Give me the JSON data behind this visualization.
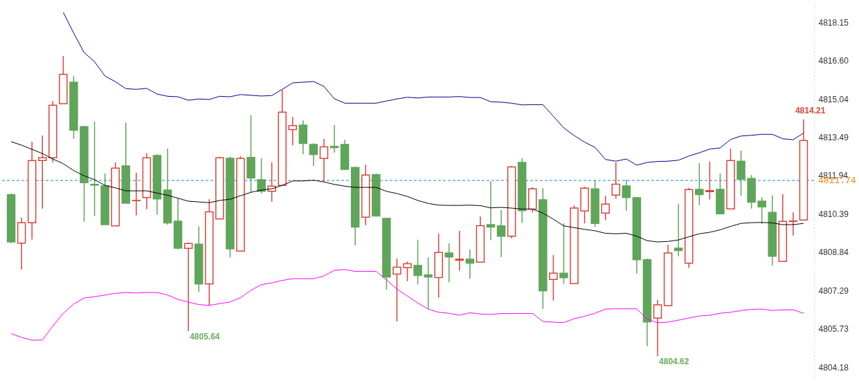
{
  "chart_data": {
    "type": "candlestick",
    "categories": [
      null,
      null,
      null,
      null,
      null,
      null,
      null,
      null,
      null,
      null,
      null,
      null,
      null,
      null,
      null,
      null,
      null,
      null,
      null,
      null,
      null,
      null,
      null,
      null,
      null,
      null,
      null,
      null,
      null,
      null,
      null,
      null,
      null,
      null,
      null,
      null,
      null,
      null,
      null,
      null,
      null,
      null,
      null,
      null,
      null,
      null,
      null,
      null,
      null,
      null,
      null,
      null,
      null,
      null,
      null,
      null,
      null,
      null,
      null,
      null,
      null,
      null,
      null,
      null,
      null,
      null,
      null,
      null,
      null,
      null,
      null,
      null,
      null,
      null,
      null,
      null,
      null
    ],
    "ohlc": [
      [
        4811.16,
        4811.21,
        4809.2,
        4809.25
      ],
      [
        4809.2,
        4810.23,
        4808.13,
        4810.03
      ],
      [
        4810.03,
        4813.31,
        4809.35,
        4812.55
      ],
      [
        4812.55,
        4813.56,
        4810.6,
        4812.66
      ],
      [
        4812.66,
        4814.96,
        4812.47,
        4814.79
      ],
      [
        4814.85,
        4816.78,
        4814.85,
        4816.04
      ],
      [
        4815.72,
        4815.97,
        4813.43,
        4813.78
      ],
      [
        4813.92,
        4813.96,
        4810.07,
        4811.65
      ],
      [
        4811.58,
        4814.12,
        4810.3,
        4811.55
      ],
      [
        4811.52,
        4812.02,
        4809.95,
        4809.95
      ],
      [
        4809.9,
        4812.47,
        4809.9,
        4812.24
      ],
      [
        4812.33,
        4814.08,
        4810.82,
        4810.82
      ],
      [
        4810.92,
        4812.05,
        4810.33,
        4810.93
      ],
      [
        4811.05,
        4812.84,
        4810.58,
        4812.66
      ],
      [
        4812.75,
        4812.8,
        4810.35,
        4810.99
      ],
      [
        4811.35,
        4813.03,
        4809.95,
        4810.02
      ],
      [
        4810.09,
        4811.02,
        4808.95,
        4809.0
      ],
      [
        4808.99,
        4809.22,
        4805.64,
        4809.19
      ],
      [
        4809.16,
        4809.88,
        4807.22,
        4807.55
      ],
      [
        4807.55,
        4810.98,
        4806.67,
        4810.47
      ],
      [
        4810.18,
        4812.7,
        4810.18,
        4812.66
      ],
      [
        4812.64,
        4812.7,
        4808.62,
        4808.97
      ],
      [
        4808.88,
        4812.72,
        4808.88,
        4812.63
      ],
      [
        4812.67,
        4814.38,
        4811.26,
        4811.84
      ],
      [
        4811.77,
        4812.64,
        4811.21,
        4811.3
      ],
      [
        4811.3,
        4812.47,
        4810.88,
        4811.51
      ],
      [
        4811.54,
        4815.41,
        4811.54,
        4814.51
      ],
      [
        4813.8,
        4814.32,
        4813.17,
        4813.96
      ],
      [
        4813.98,
        4814.17,
        4812.8,
        4813.24
      ],
      [
        4813.2,
        4813.24,
        4812.33,
        4812.79
      ],
      [
        4812.63,
        4813.42,
        4811.7,
        4813.1
      ],
      [
        4813.12,
        4813.98,
        4812.87,
        4813.07
      ],
      [
        4813.2,
        4813.39,
        4812.17,
        4812.19
      ],
      [
        4812.27,
        4812.3,
        4809.11,
        4809.85
      ],
      [
        4810.25,
        4812.38,
        4809.93,
        4811.96
      ],
      [
        4811.97,
        4812.02,
        4810.3,
        4810.3
      ],
      [
        4810.2,
        4810.23,
        4807.31,
        4807.83
      ],
      [
        4807.95,
        4808.58,
        4806.03,
        4808.23
      ],
      [
        4808.21,
        4808.46,
        4807.66,
        4808.37
      ],
      [
        4808.3,
        4809.34,
        4807.53,
        4807.89
      ],
      [
        4807.91,
        4808.63,
        4806.54,
        4807.83
      ],
      [
        4807.81,
        4809.59,
        4806.99,
        4808.82
      ],
      [
        4808.8,
        4809.19,
        4807.61,
        4808.64
      ],
      [
        4808.51,
        4809.7,
        4808.08,
        4808.55
      ],
      [
        4808.55,
        4808.94,
        4807.76,
        4808.39
      ],
      [
        4808.43,
        4810.28,
        4808.43,
        4809.91
      ],
      [
        4809.95,
        4811.7,
        4809.32,
        4809.85
      ],
      [
        4809.9,
        4810.54,
        4808.64,
        4809.48
      ],
      [
        4809.48,
        4812.33,
        4809.39,
        4812.29
      ],
      [
        4812.47,
        4812.64,
        4810.02,
        4810.52
      ],
      [
        4810.58,
        4811.47,
        4810.44,
        4811.4
      ],
      [
        4810.96,
        4811.43,
        4806.54,
        4807.27
      ],
      [
        4807.73,
        4808.72,
        4806.88,
        4807.98
      ],
      [
        4807.98,
        4810.0,
        4807.55,
        4807.8
      ],
      [
        4807.56,
        4810.73,
        4807.56,
        4810.62
      ],
      [
        4810.5,
        4811.49,
        4810.0,
        4811.43
      ],
      [
        4811.4,
        4811.77,
        4809.86,
        4810.0
      ],
      [
        4810.42,
        4811.12,
        4810.14,
        4810.78
      ],
      [
        4811.15,
        4812.47,
        4811.0,
        4811.59
      ],
      [
        4811.52,
        4811.77,
        4810.51,
        4811.05
      ],
      [
        4811.04,
        4811.07,
        4807.97,
        4808.53
      ],
      [
        4808.53,
        4808.58,
        4805.03,
        4806.01
      ],
      [
        4806.16,
        4806.9,
        4804.62,
        4806.7
      ],
      [
        4806.67,
        4809.14,
        4806.67,
        4808.8
      ],
      [
        4809.0,
        4810.79,
        4808.67,
        4808.9
      ],
      [
        4808.39,
        4811.44,
        4808.2,
        4811.37
      ],
      [
        4811.38,
        4812.44,
        4810.74,
        4811.17
      ],
      [
        4811.29,
        4812.51,
        4810.97,
        4811.33
      ],
      [
        4811.38,
        4812.02,
        4810.39,
        4810.39
      ],
      [
        4810.59,
        4813.03,
        4810.59,
        4812.55
      ],
      [
        4812.52,
        4812.95,
        4811.12,
        4811.79
      ],
      [
        4811.82,
        4811.96,
        4810.6,
        4810.86
      ],
      [
        4810.9,
        4811.06,
        4809.97,
        4810.67
      ],
      [
        4810.45,
        4811.13,
        4808.29,
        4808.67
      ],
      [
        4808.46,
        4811.18,
        4808.46,
        4810.08
      ],
      [
        4810.08,
        4810.45,
        4809.51,
        4810.1
      ],
      [
        4810.14,
        4814.21,
        4810.14,
        4813.36
      ]
    ],
    "colors": [
      "#5fa55a",
      "#d9453d",
      "#d9453d",
      "#d9453d",
      "#d9453d",
      "#d9453d",
      "#5fa55a",
      "#5fa55a",
      "#5fa55a",
      "#5fa55a",
      "#d9453d",
      "#5fa55a",
      "#d9453d",
      "#d9453d",
      "#5fa55a",
      "#5fa55a",
      "#5fa55a",
      "#d9453d",
      "#5fa55a",
      "#d9453d",
      "#d9453d",
      "#5fa55a",
      "#d9453d",
      "#5fa55a",
      "#5fa55a",
      "#d9453d",
      "#d9453d",
      "#d9453d",
      "#5fa55a",
      "#5fa55a",
      "#d9453d",
      "#5fa55a",
      "#5fa55a",
      "#5fa55a",
      "#d9453d",
      "#5fa55a",
      "#5fa55a",
      "#d9453d",
      "#d9453d",
      "#5fa55a",
      "#5fa55a",
      "#d9453d",
      "#5fa55a",
      "#d9453d",
      "#5fa55a",
      "#d9453d",
      "#5fa55a",
      "#5fa55a",
      "#d9453d",
      "#5fa55a",
      "#d9453d",
      "#5fa55a",
      "#d9453d",
      "#5fa55a",
      "#d9453d",
      "#d9453d",
      "#5fa55a",
      "#d9453d",
      "#d9453d",
      "#5fa55a",
      "#5fa55a",
      "#5fa55a",
      "#d9453d",
      "#d9453d",
      "#5fa55a",
      "#d9453d",
      "#5fa55a",
      "#d9453d",
      "#5fa55a",
      "#d9453d",
      "#5fa55a",
      "#5fa55a",
      "#5fa55a",
      "#5fa55a",
      "#d9453d",
      "#d9453d",
      "#d9453d"
    ],
    "series": [
      {
        "type": "line",
        "color": "#00008b",
        "values": [
          null,
          null,
          null,
          null,
          null,
          4818.55,
          4817.71,
          4816.92,
          4816.55,
          4815.97,
          4815.74,
          4815.46,
          4815.43,
          4815.47,
          4815.24,
          4815.15,
          4815.13,
          4814.99,
          4815.04,
          4815.02,
          4815.15,
          4815.13,
          4815.22,
          4815.19,
          4815.16,
          4815.18,
          4815.43,
          4815.69,
          4815.72,
          4815.75,
          4815.55,
          4815.05,
          4814.87,
          4814.87,
          4814.87,
          4814.87,
          4814.96,
          4815.04,
          4815.11,
          4815.08,
          4815.12,
          4815.12,
          4815.12,
          4815.14,
          4815.1,
          4815.1,
          4814.93,
          4814.91,
          4814.87,
          4814.8,
          4814.81,
          4814.81,
          4814.34,
          4813.87,
          4813.56,
          4813.29,
          4813.08,
          4812.59,
          4812.52,
          4812.61,
          4812.36,
          4812.47,
          4812.51,
          4812.52,
          4812.56,
          4812.73,
          4812.86,
          4813.01,
          4813.06,
          4813.4,
          4813.54,
          4813.57,
          4813.61,
          4813.61,
          4813.43,
          4813.39,
          4813.66
        ]
      },
      {
        "type": "line",
        "color": "#000000",
        "values": [
          4813.31,
          4813.17,
          4813.0,
          4812.83,
          4812.61,
          4812.42,
          4812.14,
          4811.93,
          4811.77,
          4811.54,
          4811.44,
          4811.32,
          4811.32,
          4811.32,
          4811.23,
          4811.14,
          4811.02,
          4810.9,
          4810.87,
          4810.84,
          4810.93,
          4810.98,
          4811.12,
          4811.26,
          4811.35,
          4811.4,
          4811.54,
          4811.72,
          4811.72,
          4811.75,
          4811.68,
          4811.58,
          4811.51,
          4811.46,
          4811.46,
          4811.46,
          4811.3,
          4811.21,
          4811.09,
          4810.93,
          4810.81,
          4810.74,
          4810.73,
          4810.73,
          4810.74,
          4810.72,
          4810.63,
          4810.65,
          4810.62,
          4810.58,
          4810.58,
          4810.42,
          4810.17,
          4809.9,
          4809.83,
          4809.76,
          4809.7,
          4809.6,
          4809.58,
          4809.6,
          4809.48,
          4809.3,
          4809.25,
          4809.27,
          4809.33,
          4809.46,
          4809.58,
          4809.64,
          4809.74,
          4809.88,
          4810.0,
          4810.03,
          4810.04,
          4810.02,
          4809.95,
          4809.95,
          4810.0
        ]
      },
      {
        "type": "line",
        "color": "#ff00ff",
        "values": [
          4805.54,
          4805.38,
          4805.27,
          4805.28,
          4805.84,
          4806.36,
          4806.73,
          4806.98,
          4807.03,
          4807.1,
          4807.17,
          4807.2,
          4807.18,
          4807.2,
          4807.2,
          4807.1,
          4806.92,
          4806.81,
          4806.71,
          4806.68,
          4806.75,
          4806.82,
          4806.99,
          4807.29,
          4807.52,
          4807.59,
          4807.69,
          4807.76,
          4807.76,
          4807.76,
          4807.87,
          4808.1,
          4808.13,
          4808.06,
          4808.06,
          4808.06,
          4807.71,
          4807.34,
          4807.06,
          4806.78,
          4806.53,
          4806.4,
          4806.36,
          4806.28,
          4806.38,
          4806.33,
          4806.31,
          4806.35,
          4806.35,
          4806.35,
          4806.35,
          4806.03,
          4806.0,
          4805.98,
          4806.14,
          4806.24,
          4806.36,
          4806.53,
          4806.54,
          4806.54,
          4806.54,
          4806.12,
          4805.98,
          4806.0,
          4806.08,
          4806.17,
          4806.25,
          4806.28,
          4806.36,
          4806.4,
          4806.47,
          4806.52,
          4806.53,
          4806.47,
          4806.5,
          4806.5,
          4806.36
        ]
      }
    ],
    "ylim": [
      4803.79,
      4819.05
    ],
    "yticks": [
      4818.15,
      {
        "value": 4816.6,
        "label": "4816.60"
      },
      4815.04,
      4813.49,
      4811.94,
      4810.39,
      4808.84,
      4807.29,
      4805.73,
      4804.18
    ],
    "grid": false,
    "ref_lines": [
      {
        "axis": "y",
        "value": 4811.74,
        "label": "4811.74",
        "color": "#1e7fe0",
        "line_style": "dashed"
      }
    ],
    "annotations": [
      "4805.64",
      "4804.62",
      "4814.21"
    ]
  }
}
